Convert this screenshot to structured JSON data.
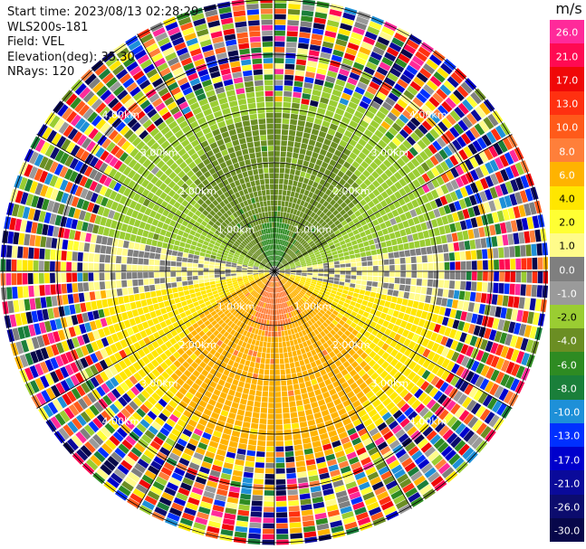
{
  "header": {
    "start_time": "Start time: 2023/08/13 02:28:29",
    "instrument": "WLS200s-181",
    "field": "Field: VEL",
    "elevation": "Elevation(deg): 35.30",
    "nrays": "NRays: 120"
  },
  "plot": {
    "range_ring_labels": [
      "1.00km",
      "2.00km",
      "3.00km",
      "4.00km"
    ],
    "rays": 120,
    "colormap_hint": "radial velocity"
  },
  "colorbar": {
    "unit": "m/s",
    "ticks": [
      "26.0",
      "21.0",
      "17.0",
      "13.0",
      "10.0",
      "8.0",
      "6.0",
      "4.0",
      "2.0",
      "1.0",
      "0.0",
      "-1.0",
      "-2.0",
      "-4.0",
      "-6.0",
      "-8.0",
      "-10.0",
      "-13.0",
      "-17.0",
      "-21.0",
      "-26.0",
      "-30.0"
    ],
    "colors": [
      "#ff2a9a",
      "#ff0a52",
      "#f00808",
      "#ff3010",
      "#ff5a1a",
      "#ff7f3a",
      "#ffb300",
      "#ffe600",
      "#ffff33",
      "#fffb8a",
      "#7f7f7f",
      "#9a9a9a",
      "#9acd32",
      "#6b8e23",
      "#2e8b22",
      "#1a7f3a",
      "#1e90d8",
      "#0030ff",
      "#0000cc",
      "#0a0a9a",
      "#0c0c6e",
      "#07074a"
    ]
  }
}
